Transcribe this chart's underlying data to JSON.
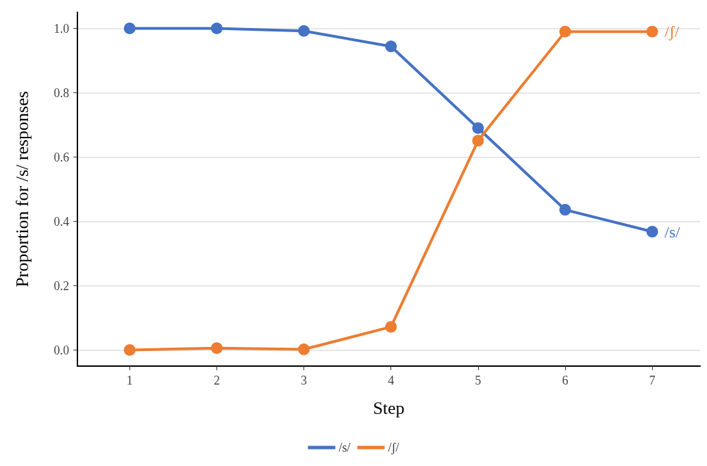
{
  "chart_data": {
    "type": "line",
    "xlabel": "Step",
    "ylabel": "Proportion for /s/ responses",
    "x": [
      1,
      2,
      3,
      4,
      5,
      6,
      7
    ],
    "series": [
      {
        "name": "/s/",
        "color": "#4472c4",
        "values": [
          1.0,
          1.0,
          0.992,
          0.944,
          0.69,
          0.436,
          0.368
        ]
      },
      {
        "name": "/ʃ/",
        "color": "#ed7d31",
        "values": [
          0.0,
          0.006,
          0.002,
          0.072,
          0.651,
          0.99,
          0.99
        ]
      }
    ],
    "xlim": [
      0.4,
      7.55
    ],
    "xticks": [
      1,
      2,
      3,
      4,
      5,
      6,
      7
    ],
    "ylim": [
      -0.05,
      1.05
    ],
    "yticks": [
      {
        "value": 0,
        "label": "0.0"
      },
      {
        "value": 0.2,
        "label": "0.2"
      },
      {
        "value": 0.4,
        "label": "0.4"
      },
      {
        "value": 0.6,
        "label": "0.6"
      },
      {
        "value": 0.8,
        "label": "0.8"
      },
      {
        "value": 1,
        "label": "1.0"
      }
    ],
    "grid": "y",
    "legend": "bottom",
    "marker": "circle",
    "line_style": "solid"
  }
}
